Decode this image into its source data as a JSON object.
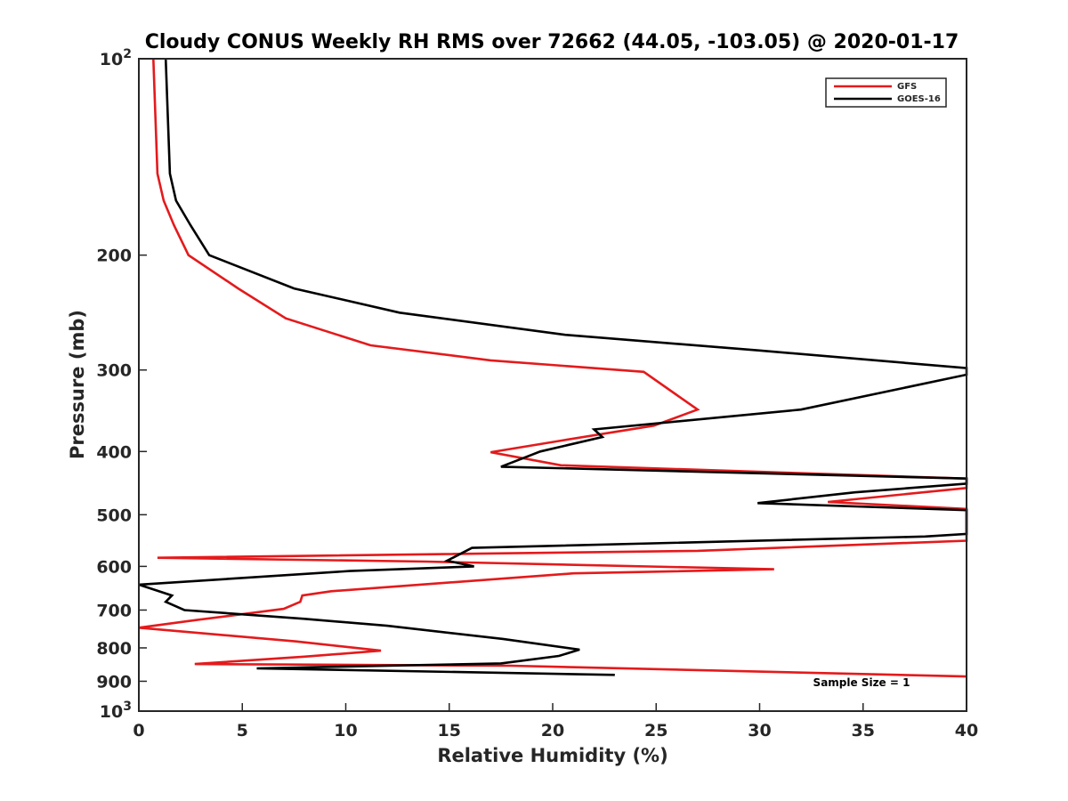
{
  "chart_data": {
    "type": "line",
    "title": "Cloudy CONUS Weekly RH RMS over 72662 (44.05, -103.05) @ 2020-01-17",
    "xlabel": "Relative Humidity (%)",
    "ylabel": "Pressure (mb)",
    "xlim": [
      0,
      40
    ],
    "ylim": [
      100,
      1000
    ],
    "y_scale": "log",
    "y_reversed": true,
    "grid": false,
    "legend_position": "top-right",
    "x_ticks": [
      {
        "value": 0,
        "label": "0"
      },
      {
        "value": 5,
        "label": "5"
      },
      {
        "value": 10,
        "label": "10"
      },
      {
        "value": 15,
        "label": "15"
      },
      {
        "value": 20,
        "label": "20"
      },
      {
        "value": 25,
        "label": "25"
      },
      {
        "value": 30,
        "label": "30"
      },
      {
        "value": 35,
        "label": "35"
      },
      {
        "value": 40,
        "label": "40"
      }
    ],
    "y_ticks": [
      {
        "value": 100,
        "base": "10",
        "exp": "2"
      },
      {
        "value": 200,
        "base": "200",
        "exp": ""
      },
      {
        "value": 300,
        "base": "300",
        "exp": ""
      },
      {
        "value": 400,
        "base": "400",
        "exp": ""
      },
      {
        "value": 500,
        "base": "500",
        "exp": ""
      },
      {
        "value": 600,
        "base": "600",
        "exp": ""
      },
      {
        "value": 700,
        "base": "700",
        "exp": ""
      },
      {
        "value": 800,
        "base": "800",
        "exp": ""
      },
      {
        "value": 900,
        "base": "900",
        "exp": ""
      },
      {
        "value": 1000,
        "base": "10",
        "exp": "3"
      }
    ],
    "annotation": "Sample Size = 1",
    "series": [
      {
        "name": "GFS",
        "color": "#e41a1c",
        "points": [
          [
            0.7,
            100
          ],
          [
            0.9,
            150
          ],
          [
            1.2,
            165
          ],
          [
            1.7,
            180
          ],
          [
            2.4,
            200
          ],
          [
            4.8,
            225
          ],
          [
            7.1,
            250
          ],
          [
            11.2,
            275
          ],
          [
            17.0,
            290
          ],
          [
            24.4,
            302
          ],
          [
            27.0,
            345
          ],
          [
            24.9,
            365
          ],
          [
            20.4,
            385
          ],
          [
            17.0,
            401
          ],
          [
            20.4,
            420
          ],
          [
            40.0,
            440
          ],
          [
            40.0,
            455
          ],
          [
            33.3,
            478
          ],
          [
            40.0,
            490
          ],
          [
            40.0,
            548
          ],
          [
            27.0,
            568
          ],
          [
            0.9,
            582
          ],
          [
            13.9,
            590
          ],
          [
            30.7,
            606
          ],
          [
            21.0,
            615
          ],
          [
            9.3,
            655
          ],
          [
            7.9,
            665
          ],
          [
            7.8,
            680
          ],
          [
            7.0,
            697
          ],
          [
            2.8,
            725
          ],
          [
            0.0,
            745
          ],
          [
            7.6,
            782
          ],
          [
            11.7,
            808
          ],
          [
            8.0,
            825
          ],
          [
            2.7,
            847
          ],
          [
            18.0,
            852
          ],
          [
            40.0,
            885
          ]
        ]
      },
      {
        "name": "GOES-16",
        "color": "#000000",
        "points": [
          [
            1.3,
            100
          ],
          [
            1.5,
            150
          ],
          [
            1.8,
            165
          ],
          [
            2.5,
            180
          ],
          [
            3.4,
            200
          ],
          [
            7.5,
            225
          ],
          [
            12.6,
            245
          ],
          [
            20.6,
            265
          ],
          [
            30.0,
            280
          ],
          [
            40.0,
            298
          ],
          [
            40.0,
            305
          ],
          [
            32.0,
            345
          ],
          [
            22.0,
            370
          ],
          [
            22.4,
            380
          ],
          [
            19.4,
            400
          ],
          [
            17.5,
            422
          ],
          [
            40.0,
            440
          ],
          [
            40.0,
            448
          ],
          [
            34.6,
            462
          ],
          [
            29.9,
            480
          ],
          [
            40.0,
            492
          ],
          [
            40.0,
            535
          ],
          [
            38.0,
            540
          ],
          [
            16.1,
            562
          ],
          [
            14.9,
            588
          ],
          [
            16.2,
            600
          ],
          [
            10.2,
            610
          ],
          [
            0.0,
            640
          ],
          [
            1.6,
            665
          ],
          [
            1.3,
            680
          ],
          [
            2.2,
            700
          ],
          [
            8.0,
            722
          ],
          [
            12.0,
            740
          ],
          [
            17.6,
            775
          ],
          [
            21.3,
            805
          ],
          [
            20.3,
            823
          ],
          [
            17.5,
            845
          ],
          [
            5.7,
            860
          ],
          [
            23.0,
            880
          ]
        ]
      }
    ]
  }
}
